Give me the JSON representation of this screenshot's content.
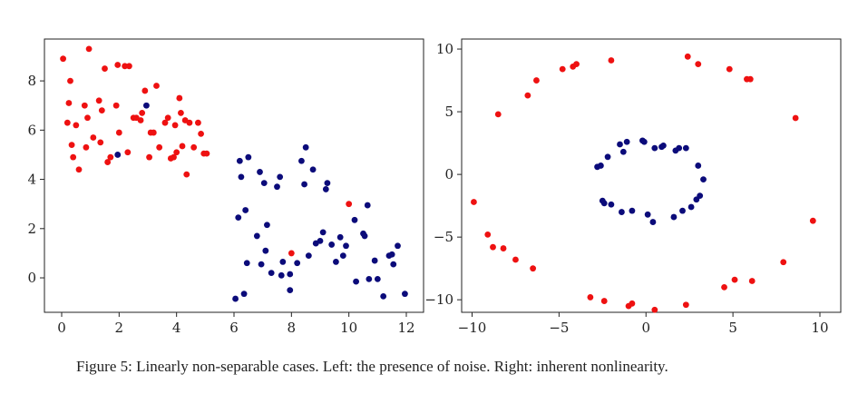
{
  "caption": "Figure 5: Linearly non-separable cases. Left: the presence of noise. Right: inherent nonlinearity.",
  "colors": {
    "red": "#ee1111",
    "blue": "#0b0b7a",
    "axis": "#222222"
  },
  "chart_data": [
    {
      "type": "scatter",
      "title": "",
      "xlabel": "",
      "ylabel": "",
      "xlim": [
        -0.6,
        12.6
      ],
      "ylim": [
        -1.4,
        9.7
      ],
      "xticks": [
        0,
        2,
        4,
        6,
        8,
        10,
        12
      ],
      "yticks": [
        0,
        2,
        4,
        6,
        8
      ],
      "grid": false,
      "series": [
        {
          "color": "#ee1111",
          "points": [
            [
              0.05,
              8.9
            ],
            [
              0.2,
              6.3
            ],
            [
              0.25,
              7.1
            ],
            [
              0.3,
              8.0
            ],
            [
              0.35,
              5.4
            ],
            [
              0.4,
              4.9
            ],
            [
              0.5,
              6.2
            ],
            [
              0.6,
              4.4
            ],
            [
              0.8,
              7.0
            ],
            [
              0.85,
              5.3
            ],
            [
              0.9,
              6.5
            ],
            [
              0.95,
              9.3
            ],
            [
              1.1,
              5.7
            ],
            [
              1.3,
              7.2
            ],
            [
              1.35,
              5.5
            ],
            [
              1.4,
              6.8
            ],
            [
              1.5,
              8.5
            ],
            [
              1.6,
              4.7
            ],
            [
              1.7,
              4.9
            ],
            [
              1.9,
              7.0
            ],
            [
              1.95,
              8.65
            ],
            [
              2.0,
              5.9
            ],
            [
              2.2,
              8.6
            ],
            [
              2.3,
              5.1
            ],
            [
              2.35,
              8.6
            ],
            [
              2.5,
              6.5
            ],
            [
              2.6,
              6.5
            ],
            [
              2.75,
              6.4
            ],
            [
              2.8,
              6.7
            ],
            [
              2.9,
              7.6
            ],
            [
              3.05,
              4.9
            ],
            [
              3.1,
              5.9
            ],
            [
              3.2,
              5.9
            ],
            [
              3.3,
              7.8
            ],
            [
              3.4,
              5.3
            ],
            [
              3.6,
              6.3
            ],
            [
              3.7,
              6.5
            ],
            [
              3.8,
              4.85
            ],
            [
              3.9,
              4.9
            ],
            [
              3.95,
              6.2
            ],
            [
              4.0,
              5.1
            ],
            [
              4.1,
              7.3
            ],
            [
              4.15,
              6.7
            ],
            [
              4.2,
              5.35
            ],
            [
              4.3,
              6.4
            ],
            [
              4.35,
              4.2
            ],
            [
              4.45,
              6.3
            ],
            [
              4.6,
              5.3
            ],
            [
              4.75,
              6.3
            ],
            [
              4.85,
              5.85
            ],
            [
              4.95,
              5.05
            ],
            [
              5.05,
              5.05
            ],
            [
              8.0,
              1.0
            ],
            [
              10.0,
              3.0
            ]
          ]
        },
        {
          "color": "#0b0b7a",
          "points": [
            [
              1.95,
              5.0
            ],
            [
              2.95,
              7.0
            ],
            [
              6.05,
              -0.85
            ],
            [
              6.15,
              2.45
            ],
            [
              6.2,
              4.75
            ],
            [
              6.25,
              4.1
            ],
            [
              6.35,
              -0.65
            ],
            [
              6.4,
              2.75
            ],
            [
              6.45,
              0.6
            ],
            [
              6.5,
              4.9
            ],
            [
              6.8,
              1.7
            ],
            [
              6.9,
              4.3
            ],
            [
              6.95,
              0.55
            ],
            [
              7.05,
              3.85
            ],
            [
              7.1,
              1.1
            ],
            [
              7.15,
              2.15
            ],
            [
              7.3,
              0.2
            ],
            [
              7.5,
              3.7
            ],
            [
              7.6,
              4.1
            ],
            [
              7.65,
              0.1
            ],
            [
              7.7,
              0.65
            ],
            [
              7.95,
              -0.5
            ],
            [
              7.95,
              0.15
            ],
            [
              8.2,
              0.6
            ],
            [
              8.35,
              4.75
            ],
            [
              8.45,
              3.8
            ],
            [
              8.5,
              5.3
            ],
            [
              8.6,
              0.9
            ],
            [
              8.75,
              4.4
            ],
            [
              8.85,
              1.4
            ],
            [
              9.0,
              1.5
            ],
            [
              9.1,
              1.85
            ],
            [
              9.2,
              3.6
            ],
            [
              9.25,
              3.85
            ],
            [
              9.4,
              1.35
            ],
            [
              9.55,
              0.65
            ],
            [
              9.7,
              1.65
            ],
            [
              9.8,
              0.9
            ],
            [
              9.9,
              1.3
            ],
            [
              10.2,
              2.35
            ],
            [
              10.25,
              -0.15
            ],
            [
              10.5,
              1.8
            ],
            [
              10.55,
              1.7
            ],
            [
              10.65,
              2.95
            ],
            [
              10.7,
              -0.05
            ],
            [
              10.9,
              0.7
            ],
            [
              11.0,
              -0.05
            ],
            [
              11.2,
              -0.75
            ],
            [
              11.4,
              0.9
            ],
            [
              11.5,
              0.95
            ],
            [
              11.55,
              0.55
            ],
            [
              11.7,
              1.3
            ],
            [
              11.95,
              -0.65
            ]
          ]
        }
      ]
    },
    {
      "type": "scatter",
      "title": "",
      "xlabel": "",
      "ylabel": "",
      "xlim": [
        -10.6,
        11.2
      ],
      "ylim": [
        -11.0,
        10.8
      ],
      "xticks": [
        -10,
        -5,
        0,
        5,
        10
      ],
      "yticks": [
        -10,
        -5,
        0,
        5,
        10
      ],
      "grid": false,
      "series": [
        {
          "color": "#ee1111",
          "points": [
            [
              -9.9,
              -2.2
            ],
            [
              -9.1,
              -4.8
            ],
            [
              -8.8,
              -5.8
            ],
            [
              -8.5,
              4.8
            ],
            [
              -8.2,
              -5.9
            ],
            [
              -7.5,
              -6.8
            ],
            [
              -6.8,
              6.3
            ],
            [
              -6.5,
              -7.5
            ],
            [
              -6.3,
              7.5
            ],
            [
              -4.8,
              8.4
            ],
            [
              -4.2,
              8.6
            ],
            [
              -4.0,
              8.8
            ],
            [
              -3.2,
              -9.8
            ],
            [
              -2.4,
              -10.1
            ],
            [
              -2.0,
              9.1
            ],
            [
              -1.0,
              -10.5
            ],
            [
              -0.8,
              -10.3
            ],
            [
              0.5,
              -10.8
            ],
            [
              2.3,
              -10.4
            ],
            [
              2.4,
              9.4
            ],
            [
              3.0,
              8.8
            ],
            [
              4.5,
              -9.0
            ],
            [
              4.8,
              8.4
            ],
            [
              5.1,
              -8.4
            ],
            [
              5.8,
              7.6
            ],
            [
              6.0,
              7.6
            ],
            [
              6.1,
              -8.5
            ],
            [
              7.9,
              -7.0
            ],
            [
              8.6,
              4.5
            ],
            [
              9.6,
              -3.7
            ]
          ]
        },
        {
          "color": "#0b0b7a",
          "points": [
            [
              -2.8,
              0.6
            ],
            [
              -2.6,
              0.7
            ],
            [
              -2.5,
              -2.1
            ],
            [
              -2.4,
              -2.3
            ],
            [
              -2.2,
              1.4
            ],
            [
              -2.0,
              -2.4
            ],
            [
              -1.5,
              2.4
            ],
            [
              -1.4,
              -3.0
            ],
            [
              -1.3,
              1.8
            ],
            [
              -1.1,
              2.6
            ],
            [
              -0.8,
              -2.9
            ],
            [
              -0.2,
              2.7
            ],
            [
              -0.1,
              2.6
            ],
            [
              0.1,
              -3.2
            ],
            [
              0.4,
              -3.8
            ],
            [
              0.5,
              2.1
            ],
            [
              0.9,
              2.2
            ],
            [
              1.0,
              2.3
            ],
            [
              1.6,
              -3.4
            ],
            [
              1.7,
              1.9
            ],
            [
              1.9,
              2.1
            ],
            [
              2.1,
              -2.9
            ],
            [
              2.3,
              2.1
            ],
            [
              2.6,
              -2.6
            ],
            [
              2.9,
              -2.0
            ],
            [
              3.1,
              -1.7
            ],
            [
              3.0,
              0.7
            ],
            [
              3.3,
              -0.4
            ]
          ]
        }
      ]
    }
  ]
}
